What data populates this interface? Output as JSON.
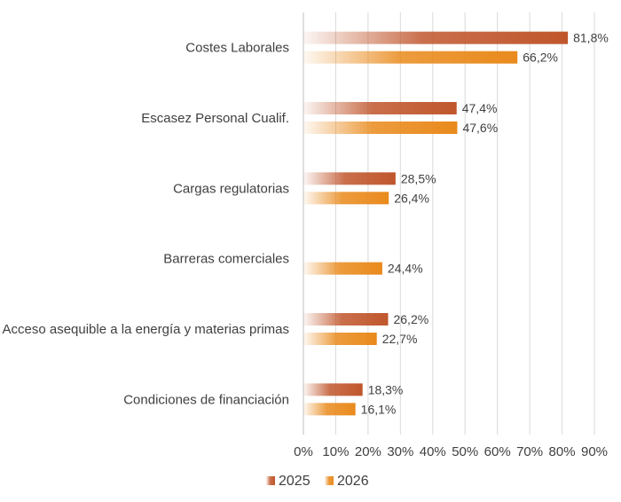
{
  "chart_data": {
    "type": "bar",
    "orientation": "horizontal",
    "title": "",
    "xlabel": "",
    "ylabel": "",
    "xlim": [
      0,
      90
    ],
    "x_tick_step": 10,
    "x_tick_labels": [
      "0%",
      "10%",
      "20%",
      "30%",
      "40%",
      "50%",
      "60%",
      "70%",
      "80%",
      "90%"
    ],
    "grid": "vertical",
    "legend_position": "bottom",
    "categories": [
      "Costes Laborales",
      "Escasez Personal Cualif.",
      "Cargas regulatorias",
      "Barreras comerciales",
      "Acceso asequible a la energía y materias primas",
      "Condiciones de financiación"
    ],
    "series": [
      {
        "name": "2025",
        "color": "#C0562C",
        "values": [
          81.8,
          47.4,
          28.5,
          null,
          26.2,
          18.3
        ],
        "labels": [
          "81,8%",
          "47,4%",
          "28,5%",
          "",
          "26,2%",
          "18,3%"
        ]
      },
      {
        "name": "2026",
        "color": "#E98A1C",
        "values": [
          66.2,
          47.6,
          26.4,
          24.4,
          22.7,
          16.1
        ],
        "labels": [
          "66,2%",
          "47,6%",
          "26,4%",
          "24,4%",
          "22,7%",
          "16,1%"
        ]
      }
    ]
  }
}
